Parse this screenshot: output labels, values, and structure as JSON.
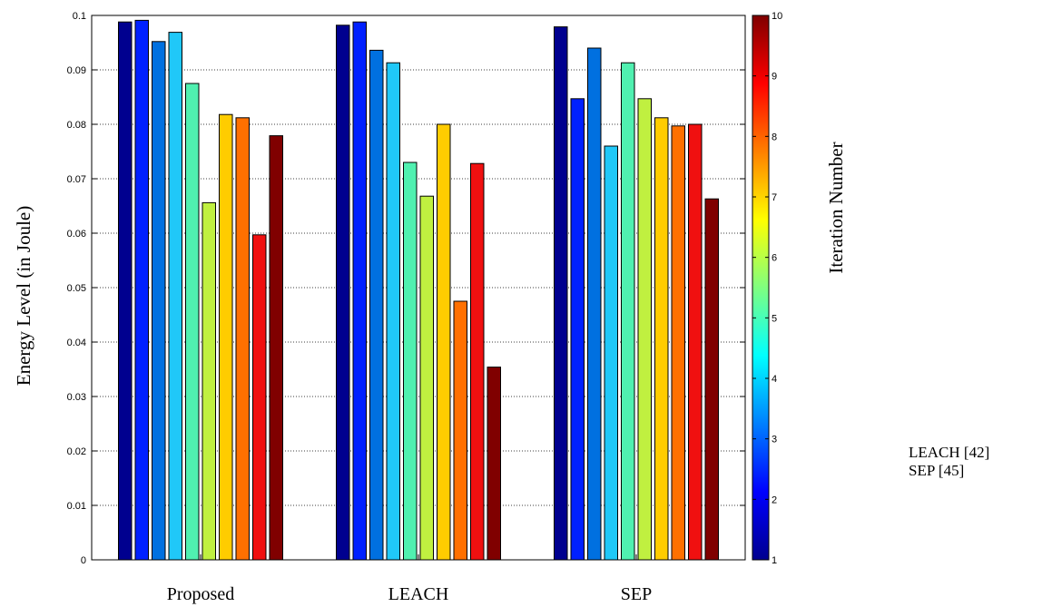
{
  "chart_data": {
    "type": "bar",
    "categories": [
      "Proposed",
      "LEACH",
      "SEP"
    ],
    "series": [
      {
        "values": [
          0.0988,
          0.0982,
          0.0979
        ]
      },
      {
        "values": [
          0.0991,
          0.0988,
          0.0847
        ]
      },
      {
        "values": [
          0.0952,
          0.0936,
          0.094
        ]
      },
      {
        "values": [
          0.0969,
          0.0913,
          0.076
        ]
      },
      {
        "values": [
          0.0875,
          0.073,
          0.0913
        ]
      },
      {
        "values": [
          0.0656,
          0.0668,
          0.0847
        ]
      },
      {
        "values": [
          0.0818,
          0.08,
          0.0812
        ]
      },
      {
        "values": [
          0.0812,
          0.0475,
          0.0797
        ]
      },
      {
        "values": [
          0.0597,
          0.0728,
          0.08
        ]
      },
      {
        "values": [
          0.0779,
          0.0354,
          0.0663
        ]
      }
    ],
    "series_colors": [
      "#00008f",
      "#0020ff",
      "#0070e0",
      "#20c8f8",
      "#50f0b0",
      "#c0f040",
      "#ffcc00",
      "#ff7000",
      "#f01010",
      "#800000"
    ],
    "ylim": [
      0,
      0.1
    ],
    "yticks": [
      "0",
      "0.01",
      "0.02",
      "0.03",
      "0.04",
      "0.05",
      "0.06",
      "0.07",
      "0.08",
      "0.09",
      "0.1"
    ],
    "ylabel": "Energy Level (in Joule)",
    "grid": true,
    "colorbar": {
      "label": "Iteration Number",
      "ticks": [
        "1",
        "2",
        "3",
        "4",
        "5",
        "6",
        "7",
        "8",
        "9",
        "10"
      ],
      "range": [
        1,
        10
      ]
    }
  },
  "side_text": [
    "LEACH [42]",
    "SEP [45]"
  ]
}
